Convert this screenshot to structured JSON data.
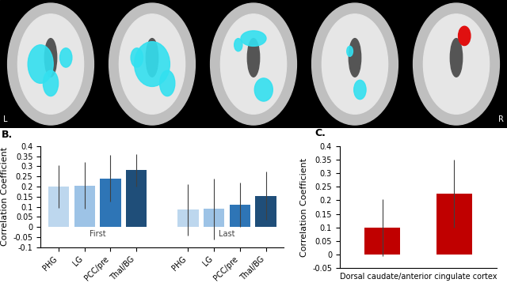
{
  "brain_images": {
    "left_label": "L",
    "right_label": "R"
  },
  "chart_data": [
    {
      "type": "bar",
      "title": "B.",
      "y_label": "Correlation Coefficient",
      "categories": [
        "First",
        "Last"
      ],
      "series": [
        {
          "name": "PHG",
          "color": "#bdd7ee",
          "values": [
            0.2,
            0.085
          ],
          "errors": [
            0.105,
            0.125
          ]
        },
        {
          "name": "LG",
          "color": "#9dc3e6",
          "values": [
            0.205,
            0.09
          ],
          "errors": [
            0.115,
            0.15
          ]
        },
        {
          "name": "PCC/pre",
          "color": "#2e75b6",
          "values": [
            0.24,
            0.11
          ],
          "errors": [
            0.115,
            0.11
          ]
        },
        {
          "name": "Thal/BG",
          "color": "#1f4e79",
          "values": [
            0.28,
            0.155
          ],
          "errors": [
            0.08,
            0.12
          ]
        }
      ],
      "ylim": [
        -0.1,
        0.4
      ],
      "yticks": [
        -0.1,
        -0.05,
        0,
        0.05,
        0.1,
        0.15,
        0.2,
        0.25,
        0.3,
        0.35,
        0.4
      ],
      "grid": false
    },
    {
      "type": "bar",
      "title": "C.",
      "y_label": "Correlation Coefficient",
      "x_label": "Dorsal caudate/anterior cingulate cortex",
      "categories": [
        null,
        null
      ],
      "values": [
        0.1,
        0.225
      ],
      "errors": [
        0.105,
        0.125
      ],
      "color": "#c00000",
      "ylim": [
        -0.05,
        0.4
      ],
      "yticks": [
        -0.05,
        0,
        0.05,
        0.1,
        0.15,
        0.2,
        0.25,
        0.3,
        0.35,
        0.4
      ],
      "grid": false
    }
  ]
}
